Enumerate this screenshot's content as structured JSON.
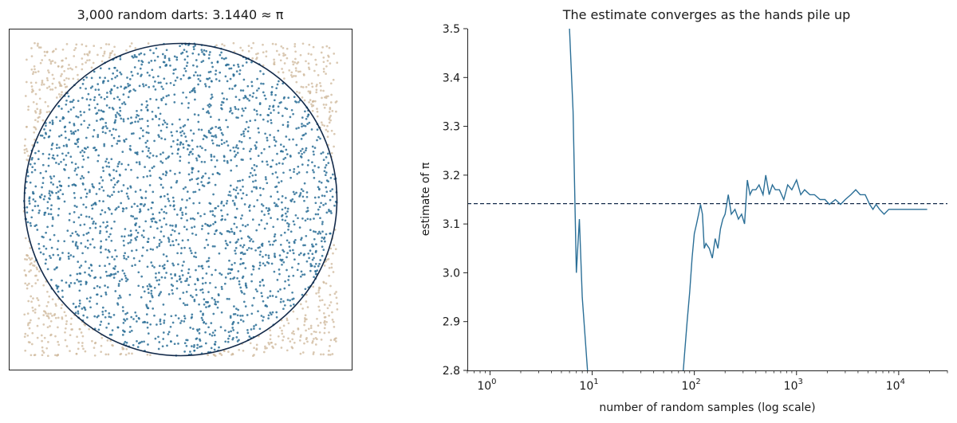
{
  "colors": {
    "inside": "#2b6f97",
    "outside": "#cdb79a",
    "circle": "#132a4a",
    "line": "#2b6f97",
    "reference": "#132a4a",
    "axis": "#222222",
    "background": "#ffffff"
  },
  "chart_data": [
    {
      "type": "scatter",
      "title": "3,000 random darts: 3.1440 ≈ π",
      "xlabel": "",
      "ylabel": "",
      "xlim": [
        -1,
        1
      ],
      "ylim": [
        -1,
        1
      ],
      "axes_ticks": false,
      "grid": false,
      "n_points": 3000,
      "pi_estimate": 3.144,
      "inside_fraction": 0.786,
      "series": [
        {
          "category": "inside circle",
          "color": "#2b6f97"
        },
        {
          "category": "outside circle",
          "color": "#cdb79a"
        }
      ],
      "circle": {
        "center": [
          0,
          0
        ],
        "radius": 1
      }
    },
    {
      "type": "line",
      "title": "The estimate converges as the hands pile up",
      "xlabel": "number of random samples (log scale)",
      "ylabel": "estimate of π",
      "xscale": "log",
      "xlim": [
        0.6,
        30000
      ],
      "ylim": [
        2.8,
        3.5
      ],
      "grid": false,
      "x_ticks": [
        {
          "value": 1,
          "label_base": "10",
          "label_exp": "0"
        },
        {
          "value": 10,
          "label_base": "10",
          "label_exp": "1"
        },
        {
          "value": 100,
          "label_base": "10",
          "label_exp": "2"
        },
        {
          "value": 1000,
          "label_base": "10",
          "label_exp": "3"
        },
        {
          "value": 10000,
          "label_base": "10",
          "label_exp": "4"
        }
      ],
      "y_ticks": [
        "2.8",
        "2.9",
        "3.0",
        "3.1",
        "3.2",
        "3.3",
        "3.4",
        "3.5"
      ],
      "reference_line": {
        "y": 3.14159,
        "style": "dashed"
      },
      "series": {
        "x": [
          6,
          6.5,
          7,
          7.5,
          8,
          9,
          78,
          80,
          85,
          90,
          95,
          100,
          105,
          110,
          115,
          120,
          125,
          130,
          140,
          150,
          160,
          170,
          180,
          190,
          200,
          215,
          230,
          250,
          270,
          290,
          310,
          330,
          350,
          370,
          400,
          430,
          470,
          500,
          540,
          580,
          620,
          680,
          750,
          820,
          900,
          1000,
          1100,
          1200,
          1350,
          1500,
          1700,
          1900,
          2100,
          2400,
          2700,
          3000,
          3400,
          3800,
          4200,
          4700,
          5200,
          5600,
          6000,
          6500,
          7200,
          8000,
          9000,
          10000,
          11000,
          12000,
          13500,
          15000,
          17000,
          19000
        ],
        "y": [
          3.5,
          3.33,
          3.0,
          3.11,
          2.95,
          2.8,
          2.8,
          2.83,
          2.9,
          2.96,
          3.03,
          3.08,
          3.1,
          3.12,
          3.14,
          3.12,
          3.05,
          3.06,
          3.05,
          3.03,
          3.07,
          3.05,
          3.09,
          3.11,
          3.12,
          3.16,
          3.12,
          3.13,
          3.11,
          3.12,
          3.1,
          3.19,
          3.16,
          3.17,
          3.17,
          3.18,
          3.16,
          3.2,
          3.16,
          3.18,
          3.17,
          3.17,
          3.15,
          3.18,
          3.17,
          3.19,
          3.16,
          3.17,
          3.16,
          3.16,
          3.15,
          3.15,
          3.14,
          3.15,
          3.14,
          3.15,
          3.16,
          3.17,
          3.16,
          3.16,
          3.14,
          3.13,
          3.14,
          3.13,
          3.12,
          3.13,
          3.13,
          3.13,
          3.13,
          3.13,
          3.13,
          3.13,
          3.13,
          3.13
        ]
      }
    }
  ]
}
